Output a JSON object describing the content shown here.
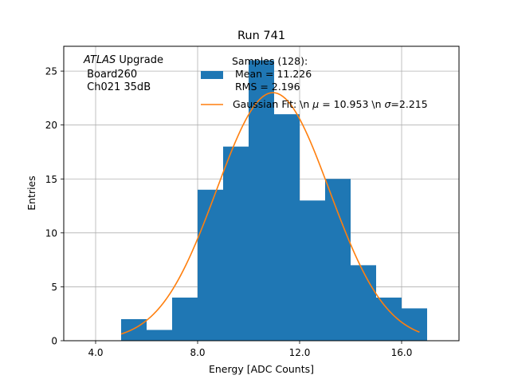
{
  "chart_data": {
    "type": "bar",
    "title": "Run 741",
    "xlabel": "Energy [ADC Counts]",
    "ylabel": "Entries",
    "xlim": [
      2.75,
      18.25
    ],
    "ylim": [
      0,
      27.3
    ],
    "grid": true,
    "xticks": [
      4.0,
      8.0,
      12.0,
      16.0
    ],
    "xtick_labels": [
      "4.0",
      "8.0",
      "12.0",
      "16.0"
    ],
    "yticks": [
      0,
      5,
      10,
      15,
      20,
      25
    ],
    "ytick_labels": [
      "0",
      "5",
      "10",
      "15",
      "20",
      "25"
    ],
    "bin_edges": [
      5,
      6,
      7,
      8,
      9,
      10,
      11,
      12,
      13,
      14,
      15,
      16,
      17
    ],
    "values": [
      2,
      1,
      4,
      14,
      18,
      26,
      21,
      13,
      15,
      7,
      4,
      3
    ],
    "series": [
      {
        "name": "Samples (128):\n Mean = 11.226\n RMS = 2.196",
        "kind": "histogram",
        "color": "#1f77b4"
      },
      {
        "name": "Gaussian Fit: \\n $\\mu$ = 10.953 \\n $\\sigma$=2.215",
        "kind": "gaussian-fit",
        "color": "#ff7f0e",
        "amplitude": 23.0,
        "mu": 10.953,
        "sigma": 2.215,
        "x_range": [
          5.0,
          16.7
        ]
      }
    ],
    "legend": {
      "placement": "top-right",
      "samples_lines": [
        "Samples (128):",
        " Mean = 11.226",
        " RMS = 2.196"
      ],
      "fit_text_prefix": "Gaussian Fit: \\n ",
      "mu_symbol": "μ",
      "fit_mu_text": " = 10.953 \\n ",
      "sigma_symbol": "σ",
      "fit_sigma_text": "=2.215"
    },
    "annotation": {
      "italic": "ATLAS",
      "rest": " Upgrade",
      "line2": " Board260",
      "line3": " Ch021 35dB"
    }
  }
}
